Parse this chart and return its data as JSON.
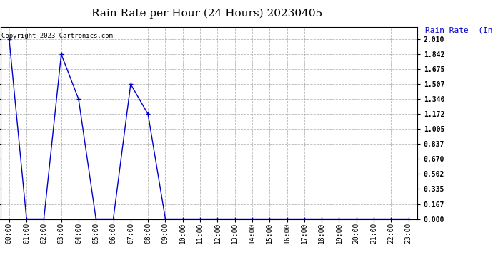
{
  "title": "Rain Rate per Hour (24 Hours) 20230405",
  "ylabel_text": "Rain Rate  (Inches/Hour)",
  "copyright_text": "Copyright 2023 Cartronics.com",
  "line_color": "#0000cc",
  "background_color": "#ffffff",
  "grid_color": "#999999",
  "ylabel_color": "#0000cc",
  "hours": [
    0,
    1,
    2,
    3,
    4,
    5,
    6,
    7,
    8,
    9,
    10,
    11,
    12,
    13,
    14,
    15,
    16,
    17,
    18,
    19,
    20,
    21,
    22,
    23
  ],
  "values": [
    2.01,
    0.0,
    0.0,
    1.842,
    1.34,
    0.0,
    0.0,
    1.507,
    1.172,
    0.0,
    0.0,
    0.0,
    0.0,
    0.0,
    0.0,
    0.0,
    0.0,
    0.0,
    0.0,
    0.0,
    0.0,
    0.0,
    0.0,
    0.0
  ],
  "yticks": [
    0.0,
    0.167,
    0.335,
    0.502,
    0.67,
    0.837,
    1.005,
    1.172,
    1.34,
    1.507,
    1.675,
    1.842,
    2.01
  ],
  "ylim": [
    0.0,
    2.15
  ],
  "title_fontsize": 11,
  "tick_fontsize": 7,
  "copyright_fontsize": 6.5,
  "ylabel_fontsize": 8
}
